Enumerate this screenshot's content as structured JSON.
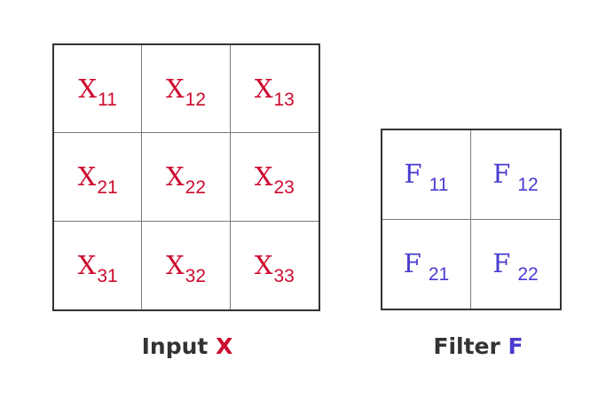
{
  "input": {
    "caption_text": "Input",
    "caption_var": "X",
    "color": "#cc0a2f",
    "cells": [
      {
        "symbol": "X",
        "sub": "11"
      },
      {
        "symbol": "X",
        "sub": "12"
      },
      {
        "symbol": "X",
        "sub": "13"
      },
      {
        "symbol": "X",
        "sub": "21"
      },
      {
        "symbol": "X",
        "sub": "22"
      },
      {
        "symbol": "X",
        "sub": "23"
      },
      {
        "symbol": "X",
        "sub": "31"
      },
      {
        "symbol": "X",
        "sub": "32"
      },
      {
        "symbol": "X",
        "sub": "33"
      }
    ]
  },
  "filter": {
    "caption_text": "Filter",
    "caption_var": "F",
    "color": "#4a3bd0",
    "cells": [
      {
        "symbol": "F",
        "sub": "11"
      },
      {
        "symbol": "F",
        "sub": "12"
      },
      {
        "symbol": "F",
        "sub": "21"
      },
      {
        "symbol": "F",
        "sub": "22"
      }
    ]
  }
}
